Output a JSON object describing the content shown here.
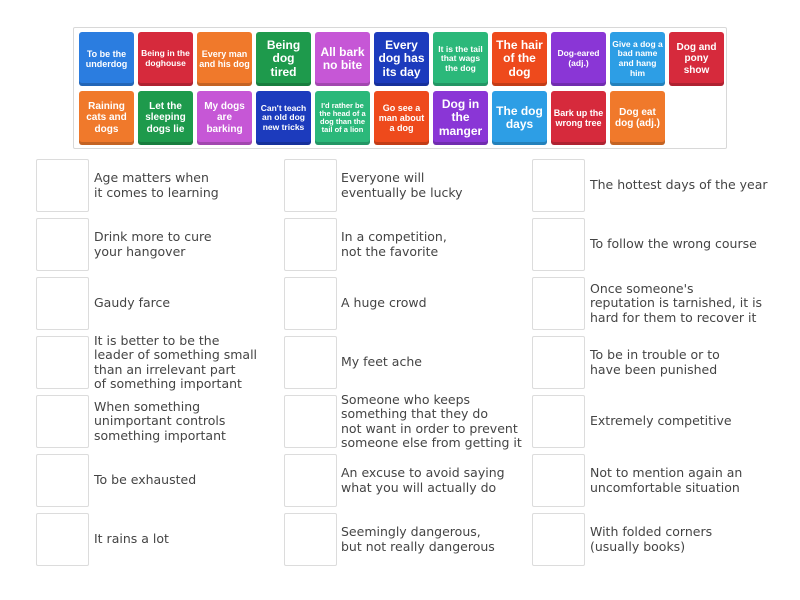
{
  "tiles": [
    {
      "label": "To be the underdog",
      "color": "#2b7de0"
    },
    {
      "label": "Being in the doghouse",
      "color": "#d62a3c"
    },
    {
      "label": "Every man and his dog",
      "color": "#f0792b"
    },
    {
      "label": "Being dog tired",
      "color": "#1e9a4c"
    },
    {
      "label": "All bark no bite",
      "color": "#c657d6"
    },
    {
      "label": "Every dog has its day",
      "color": "#1c3bbd"
    },
    {
      "label": "It is the tail that wags the dog",
      "color": "#2bb87a"
    },
    {
      "label": "The hair of the dog",
      "color": "#ee4a1c"
    },
    {
      "label": "Dog-eared (adj.)",
      "color": "#8a36d6"
    },
    {
      "label": "Give a dog a bad name and hang him",
      "color": "#2d9ee5"
    },
    {
      "label": "Dog and pony show",
      "color": "#d62a3c"
    },
    {
      "label": "Raining cats and dogs",
      "color": "#f0792b"
    },
    {
      "label": "Let the sleeping dogs lie",
      "color": "#1e9a4c"
    },
    {
      "label": "My dogs are barking",
      "color": "#c657d6"
    },
    {
      "label": "Can't teach an old dog new tricks",
      "color": "#1c3bbd"
    },
    {
      "label": "I'd rather be the head of a dog than the tail of a lion",
      "color": "#2bb87a"
    },
    {
      "label": "Go see a man about a dog",
      "color": "#ee4a1c"
    },
    {
      "label": "Dog in the manger",
      "color": "#8a36d6"
    },
    {
      "label": "The dog days",
      "color": "#2d9ee5"
    },
    {
      "label": "Bark up the wrong tree",
      "color": "#d62a3c"
    },
    {
      "label": "Dog eat dog (adj.)",
      "color": "#f0792b"
    }
  ],
  "descriptions": {
    "col1": [
      "Age matters when\nit comes to learning",
      "Drink more to cure\nyour hangover",
      "Gaudy farce",
      "It is better to be the\nleader of something small\nthan an irrelevant part\nof something important",
      "When something\nunimportant controls\nsomething important",
      "To be exhausted",
      "It rains a lot"
    ],
    "col2": [
      "Everyone will\neventually be lucky",
      "In a competition,\nnot the favorite",
      "A huge crowd",
      "My feet ache",
      "Someone who keeps\nsomething that they do\nnot want in order to prevent\nsomeone else from getting it",
      "An excuse to avoid saying\nwhat you will actually do",
      "Seemingly dangerous,\nbut not really dangerous"
    ],
    "col3": [
      "The hottest days of the year",
      "To follow the wrong course",
      "Once someone's\nreputation is tarnished, it is\nhard for them to recover it",
      "To be in trouble or to\nhave been punished",
      "Extremely competitive",
      "Not to mention again an\nuncomfortable situation",
      "With folded corners\n(usually books)"
    ]
  }
}
